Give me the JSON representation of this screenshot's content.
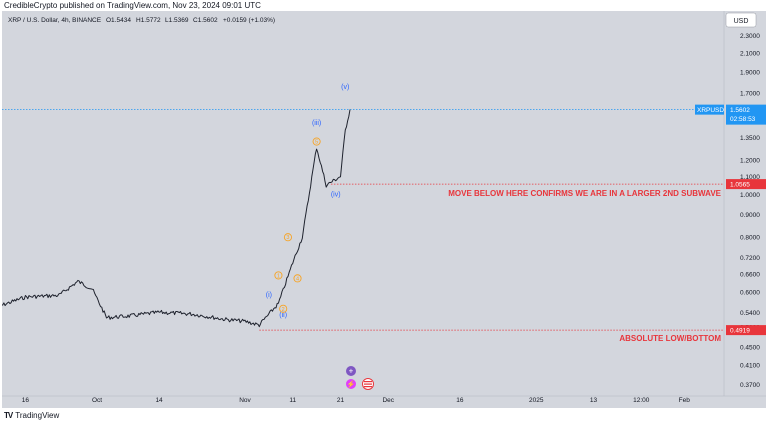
{
  "publisher": "CredibleCrypto published on TradingView.com, Nov 23, 2024 09:01 UTC",
  "footer": {
    "brand": "TradingView"
  },
  "legend": {
    "symbol": "XRP / U.S. Dollar, 4h, BINANCE",
    "O": "O1.5434",
    "H": "H1.5772",
    "L": "L1.5369",
    "C": "C1.5602",
    "change": "+0.0159 (+1.03%)"
  },
  "currency_button": "USD",
  "price_axis": [
    "2.3000",
    "2.1000",
    "1.9000",
    "1.7000",
    "1.5000",
    "1.3500",
    "1.2000",
    "1.1000",
    "1.0000",
    "0.9000",
    "0.8000",
    "0.7200",
    "0.6600",
    "0.6000",
    "0.5400",
    "0.5000",
    "0.4500",
    "0.4100",
    "0.3700"
  ],
  "time_axis": [
    "16",
    "Oct",
    "14",
    "Nov",
    "11",
    "21",
    "Dec",
    "16",
    "2025",
    "13",
    "12:00",
    "Feb"
  ],
  "last_price": {
    "symbol": "XRPUSD",
    "price": "1.5602",
    "countdown": "02:58:53"
  },
  "levels": [
    {
      "price": "1.0565",
      "label": "MOVE BELOW HERE CONFIRMS WE ARE IN A LARGER 2ND SUBWAVE"
    },
    {
      "price": "0.4919",
      "label": "ABSOLUTE LOW/BOTTOM"
    }
  ],
  "wave_labels": [
    "(i)",
    "(ii)",
    "(iii)",
    "(iv)",
    "(v)",
    "1",
    "2",
    "3",
    "4",
    "5"
  ],
  "colors": {
    "background": "#d3d6dd",
    "price": "#1e222d",
    "level": "#e8353b",
    "blue": "#2962ff",
    "orange": "#f7a425",
    "last_price": "#2196f3"
  },
  "chart_data": {
    "type": "line",
    "title": "XRP / U.S. Dollar, 4h, BINANCE",
    "y_scale": "log",
    "x": [
      "2024-09-10",
      "2024-09-16",
      "2024-09-23",
      "2024-09-27",
      "2024-09-30",
      "2024-10-03",
      "2024-10-08",
      "2024-10-14",
      "2024-10-21",
      "2024-10-28",
      "2024-11-01",
      "2024-11-04",
      "2024-11-05",
      "2024-11-08",
      "2024-11-11",
      "2024-11-13",
      "2024-11-16",
      "2024-11-18",
      "2024-11-21",
      "2024-11-22",
      "2024-11-23"
    ],
    "series": [
      {
        "values": [
          0.555,
          0.585,
          0.59,
          0.635,
          0.61,
          0.525,
          0.53,
          0.54,
          0.535,
          0.52,
          0.515,
          0.505,
          0.52,
          0.565,
          0.7,
          0.8,
          1.28,
          1.05,
          1.1,
          1.4,
          1.5602
        ]
      }
    ],
    "ylim": [
      0.37,
      2.3
    ],
    "grid": false,
    "levels": [
      1.0565,
      0.4919
    ]
  }
}
